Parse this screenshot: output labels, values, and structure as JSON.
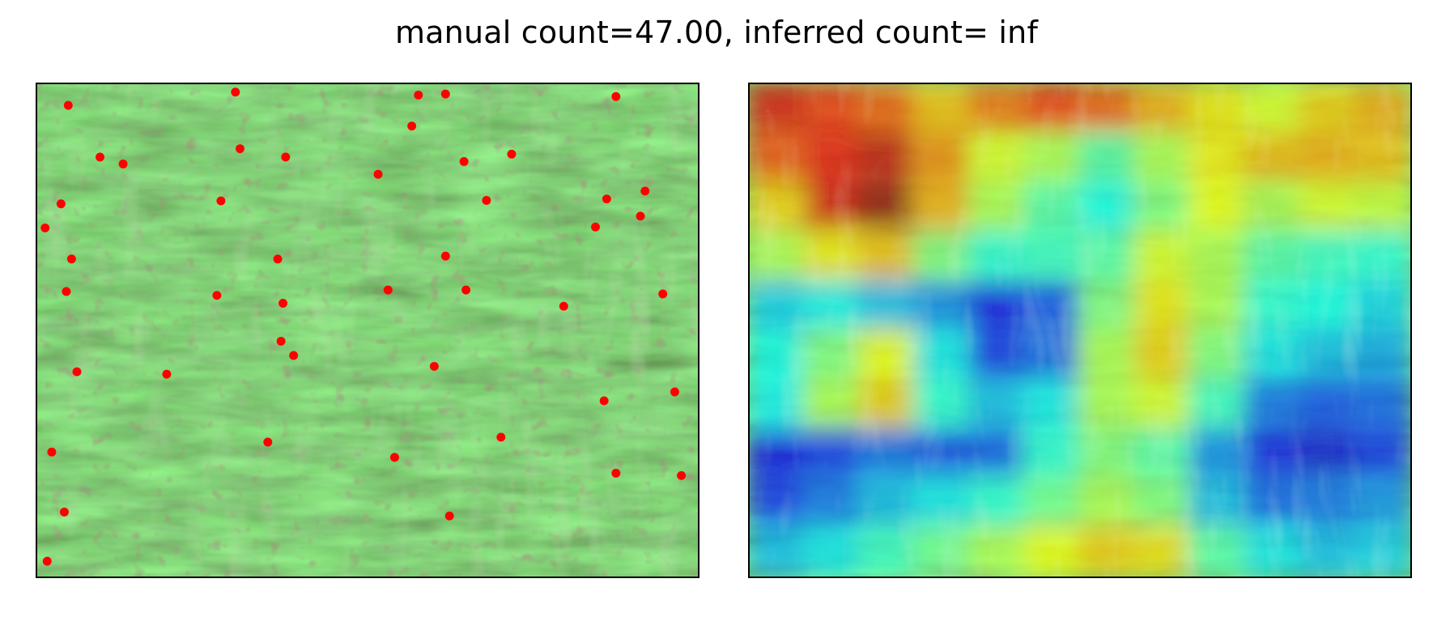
{
  "title": "manual count=47.00, inferred count= inf",
  "colors": {
    "marker": "#ff0000",
    "frame": "#000000",
    "background": "#ffffff",
    "heatmap_colormap": "jet"
  },
  "left_panel": {
    "content": "cornfield-photo",
    "marker_count": 47,
    "markers": [
      [
        0.047,
        0.043
      ],
      [
        0.3,
        0.016
      ],
      [
        0.577,
        0.022
      ],
      [
        0.618,
        0.02
      ],
      [
        0.876,
        0.025
      ],
      [
        0.567,
        0.085
      ],
      [
        0.307,
        0.131
      ],
      [
        0.095,
        0.148
      ],
      [
        0.13,
        0.162
      ],
      [
        0.376,
        0.148
      ],
      [
        0.516,
        0.183
      ],
      [
        0.646,
        0.157
      ],
      [
        0.718,
        0.142
      ],
      [
        0.036,
        0.243
      ],
      [
        0.278,
        0.237
      ],
      [
        0.68,
        0.236
      ],
      [
        0.862,
        0.233
      ],
      [
        0.92,
        0.217
      ],
      [
        0.913,
        0.268
      ],
      [
        0.012,
        0.292
      ],
      [
        0.845,
        0.29
      ],
      [
        0.052,
        0.355
      ],
      [
        0.364,
        0.355
      ],
      [
        0.618,
        0.349
      ],
      [
        0.044,
        0.421
      ],
      [
        0.272,
        0.429
      ],
      [
        0.372,
        0.445
      ],
      [
        0.531,
        0.418
      ],
      [
        0.649,
        0.418
      ],
      [
        0.797,
        0.451
      ],
      [
        0.947,
        0.426
      ],
      [
        0.369,
        0.522
      ],
      [
        0.388,
        0.551
      ],
      [
        0.06,
        0.584
      ],
      [
        0.196,
        0.589
      ],
      [
        0.601,
        0.573
      ],
      [
        0.858,
        0.643
      ],
      [
        0.965,
        0.625
      ],
      [
        0.702,
        0.717
      ],
      [
        0.022,
        0.747
      ],
      [
        0.349,
        0.727
      ],
      [
        0.541,
        0.758
      ],
      [
        0.876,
        0.79
      ],
      [
        0.975,
        0.795
      ],
      [
        0.041,
        0.869
      ],
      [
        0.624,
        0.877
      ],
      [
        0.015,
        0.969
      ]
    ]
  },
  "right_panel": {
    "content": "density-heatmap-overlay",
    "grid": [
      [
        0.9,
        0.85,
        0.8,
        0.7,
        0.78,
        0.85,
        0.8,
        0.72,
        0.65,
        0.6,
        0.68,
        0.72
      ],
      [
        0.82,
        0.88,
        0.92,
        0.75,
        0.6,
        0.55,
        0.45,
        0.55,
        0.65,
        0.7,
        0.72,
        0.7
      ],
      [
        0.68,
        0.9,
        0.97,
        0.72,
        0.55,
        0.45,
        0.38,
        0.5,
        0.62,
        0.55,
        0.6,
        0.58
      ],
      [
        0.55,
        0.65,
        0.7,
        0.5,
        0.4,
        0.42,
        0.45,
        0.6,
        0.55,
        0.45,
        0.42,
        0.4
      ],
      [
        0.32,
        0.36,
        0.3,
        0.25,
        0.12,
        0.18,
        0.5,
        0.65,
        0.55,
        0.4,
        0.38,
        0.33
      ],
      [
        0.38,
        0.5,
        0.62,
        0.35,
        0.15,
        0.2,
        0.55,
        0.68,
        0.5,
        0.35,
        0.3,
        0.28
      ],
      [
        0.36,
        0.55,
        0.68,
        0.4,
        0.3,
        0.35,
        0.55,
        0.6,
        0.42,
        0.22,
        0.18,
        0.2
      ],
      [
        0.12,
        0.15,
        0.22,
        0.18,
        0.2,
        0.4,
        0.5,
        0.45,
        0.25,
        0.12,
        0.1,
        0.15
      ],
      [
        0.15,
        0.22,
        0.3,
        0.35,
        0.4,
        0.48,
        0.55,
        0.5,
        0.3,
        0.2,
        0.22,
        0.25
      ],
      [
        0.3,
        0.35,
        0.42,
        0.48,
        0.55,
        0.62,
        0.68,
        0.66,
        0.45,
        0.35,
        0.3,
        0.32
      ]
    ]
  }
}
